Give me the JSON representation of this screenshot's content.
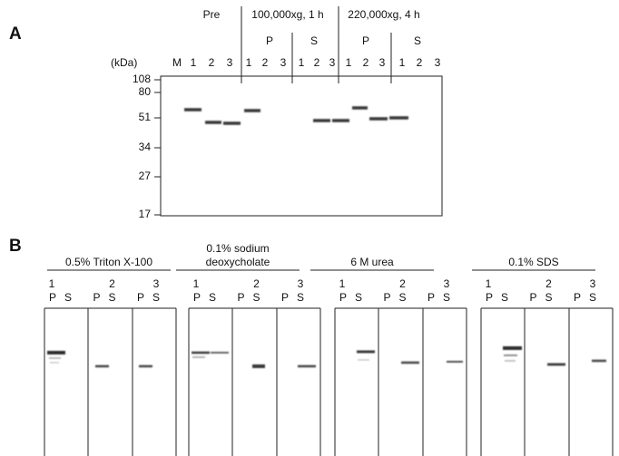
{
  "panel_a": {
    "label": "A",
    "size_unit": "(kDa)",
    "marker_lane": "M",
    "groups": [
      {
        "title": "Pre",
        "lanes": [
          "1",
          "2",
          "3"
        ]
      },
      {
        "title": "100,000xg, 1 h",
        "fractions": [
          {
            "label": "P",
            "lanes": [
              "1",
              "2",
              "3"
            ]
          },
          {
            "label": "S",
            "lanes": [
              "1",
              "2",
              "3"
            ]
          }
        ]
      },
      {
        "title": "220,000xg, 4 h",
        "fractions": [
          {
            "label": "P",
            "lanes": [
              "1",
              "2",
              "3"
            ]
          },
          {
            "label": "S",
            "lanes": [
              "1",
              "2",
              "3"
            ]
          }
        ]
      }
    ],
    "size_markers": [
      108,
      80,
      51,
      34,
      27,
      17
    ]
  },
  "panel_b": {
    "label": "B",
    "treatments": [
      {
        "title_lines": [
          "0.5% Triton X-100"
        ],
        "samples": [
          {
            "number": "1",
            "fractions": [
              "P",
              "S"
            ]
          },
          {
            "number": "2",
            "fractions": [
              "P",
              "S"
            ]
          },
          {
            "number": "3",
            "fractions": [
              "P",
              "S"
            ]
          }
        ]
      },
      {
        "title_lines": [
          "0.1% sodium",
          "deoxycholate"
        ],
        "samples": [
          {
            "number": "1",
            "fractions": [
              "P",
              "S"
            ]
          },
          {
            "number": "2",
            "fractions": [
              "P",
              "S"
            ]
          },
          {
            "number": "3",
            "fractions": [
              "P",
              "S"
            ]
          }
        ]
      },
      {
        "title_lines": [
          "6 M urea"
        ],
        "samples": [
          {
            "number": "1",
            "fractions": [
              "P",
              "S"
            ]
          },
          {
            "number": "2",
            "fractions": [
              "P",
              "S"
            ]
          },
          {
            "number": "3",
            "fractions": [
              "P",
              "S"
            ]
          }
        ]
      },
      {
        "title_lines": [
          "0.1% SDS"
        ],
        "samples": [
          {
            "number": "1",
            "fractions": [
              "P",
              "S"
            ]
          },
          {
            "number": "2",
            "fractions": [
              "P",
              "S"
            ]
          },
          {
            "number": "3",
            "fractions": [
              "P",
              "S"
            ]
          }
        ]
      }
    ]
  }
}
